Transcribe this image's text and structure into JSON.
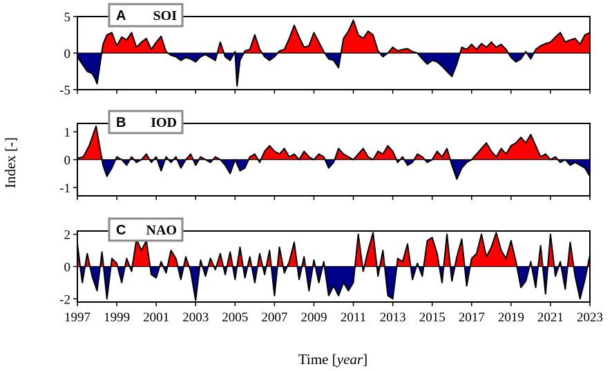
{
  "chart_data": {
    "type": "area",
    "ylabel": "Index [-]",
    "xlabel_plain": "Time [",
    "xlabel_italic": "year",
    "xlabel_close": "]",
    "xlim": [
      1997,
      2023
    ],
    "x_ticks": [
      "1997",
      "1999",
      "2001",
      "2003",
      "2005",
      "2007",
      "2009",
      "2011",
      "2013",
      "2015",
      "2017",
      "2019",
      "2021",
      "2023"
    ],
    "positive_color": "#ff0000",
    "negative_color": "#00008b",
    "line_color": "#000000",
    "panels": [
      {
        "letter": "A",
        "title": "SOI",
        "ylim": [
          -5,
          5
        ],
        "y_ticks": [
          "5",
          "0",
          "-5"
        ],
        "y_tick_values": [
          5,
          0,
          -5
        ],
        "x": [
          1997.0,
          1997.25,
          1997.5,
          1997.75,
          1997.9,
          1998.0,
          1998.15,
          1998.3,
          1998.5,
          1998.75,
          1999.0,
          1999.25,
          1999.5,
          1999.75,
          2000.0,
          2000.25,
          2000.5,
          2000.75,
          2001.0,
          2001.25,
          2001.5,
          2001.75,
          2002.0,
          2002.25,
          2002.5,
          2002.75,
          2003.0,
          2003.25,
          2003.5,
          2003.75,
          2004.0,
          2004.25,
          2004.5,
          2004.75,
          2005.0,
          2005.1,
          2005.25,
          2005.5,
          2005.75,
          2006.0,
          2006.25,
          2006.5,
          2006.75,
          2007.0,
          2007.25,
          2007.5,
          2007.75,
          2008.0,
          2008.25,
          2008.5,
          2008.75,
          2009.0,
          2009.25,
          2009.5,
          2009.75,
          2010.0,
          2010.25,
          2010.5,
          2010.75,
          2011.0,
          2011.25,
          2011.5,
          2011.75,
          2012.0,
          2012.25,
          2012.5,
          2012.75,
          2013.0,
          2013.25,
          2013.5,
          2013.75,
          2014.0,
          2014.25,
          2014.5,
          2014.75,
          2015.0,
          2015.25,
          2015.5,
          2015.75,
          2016.0,
          2016.25,
          2016.5,
          2016.75,
          2017.0,
          2017.25,
          2017.5,
          2017.75,
          2018.0,
          2018.25,
          2018.5,
          2018.75,
          2019.0,
          2019.25,
          2019.5,
          2019.75,
          2020.0,
          2020.25,
          2020.5,
          2020.75,
          2021.0,
          2021.25,
          2021.5,
          2021.75,
          2022.0,
          2022.25,
          2022.5,
          2022.75,
          2023.0
        ],
        "y": [
          -0.5,
          -1.5,
          -2.5,
          -2.8,
          -3.5,
          -4.2,
          -1.5,
          1.2,
          2.5,
          2.8,
          1.0,
          2.2,
          1.8,
          2.8,
          0.8,
          1.5,
          2.0,
          0.5,
          1.5,
          2.3,
          0.2,
          -0.3,
          -0.5,
          -1.0,
          -0.6,
          -0.8,
          -1.2,
          -0.5,
          -0.2,
          -0.6,
          -1.0,
          1.5,
          -0.5,
          -1.0,
          0.2,
          -4.5,
          -1.0,
          0.3,
          0.5,
          2.5,
          0.5,
          -0.5,
          -1.0,
          -0.5,
          0.3,
          0.5,
          2.0,
          3.8,
          2.2,
          0.8,
          1.0,
          2.8,
          1.5,
          0.2,
          -0.8,
          -1.0,
          -2.0,
          2.0,
          3.0,
          4.5,
          2.5,
          2.0,
          3.0,
          2.5,
          0.3,
          -0.5,
          0.0,
          0.8,
          0.3,
          0.5,
          0.6,
          0.2,
          0.0,
          -0.8,
          -1.5,
          -1.0,
          -1.2,
          -1.8,
          -2.5,
          -3.2,
          -1.5,
          0.8,
          0.5,
          1.2,
          0.5,
          1.3,
          0.8,
          1.5,
          0.8,
          1.2,
          0.5,
          -0.6,
          -1.2,
          -0.8,
          0.2,
          -0.8,
          0.5,
          1.0,
          1.3,
          1.5,
          2.2,
          2.8,
          1.5,
          1.8,
          2.0,
          1.2,
          2.5,
          2.8
        ]
      },
      {
        "letter": "B",
        "title": "IOD",
        "ylim": [
          -1.3,
          1.3
        ],
        "y_ticks": [
          "1",
          "0",
          "-1"
        ],
        "y_tick_values": [
          1,
          0,
          -1
        ],
        "x": [
          1997.0,
          1997.3,
          1997.6,
          1997.8,
          1997.95,
          1998.1,
          1998.3,
          1998.5,
          1998.75,
          1999.0,
          1999.25,
          1999.5,
          1999.75,
          2000.0,
          2000.25,
          2000.5,
          2000.75,
          2001.0,
          2001.25,
          2001.5,
          2001.75,
          2002.0,
          2002.25,
          2002.5,
          2002.75,
          2003.0,
          2003.25,
          2003.5,
          2003.75,
          2004.0,
          2004.25,
          2004.5,
          2004.75,
          2005.0,
          2005.25,
          2005.5,
          2005.75,
          2006.0,
          2006.25,
          2006.5,
          2006.75,
          2007.0,
          2007.25,
          2007.5,
          2007.75,
          2008.0,
          2008.25,
          2008.5,
          2008.75,
          2009.0,
          2009.25,
          2009.5,
          2009.75,
          2010.0,
          2010.25,
          2010.5,
          2010.75,
          2011.0,
          2011.25,
          2011.5,
          2011.75,
          2012.0,
          2012.25,
          2012.5,
          2012.75,
          2013.0,
          2013.25,
          2013.5,
          2013.75,
          2014.0,
          2014.25,
          2014.5,
          2014.75,
          2015.0,
          2015.25,
          2015.5,
          2015.75,
          2016.0,
          2016.25,
          2016.5,
          2016.75,
          2017.0,
          2017.25,
          2017.5,
          2017.75,
          2018.0,
          2018.25,
          2018.5,
          2018.75,
          2019.0,
          2019.25,
          2019.5,
          2019.75,
          2020.0,
          2020.25,
          2020.5,
          2020.75,
          2021.0,
          2021.25,
          2021.5,
          2021.75,
          2022.0,
          2022.25,
          2022.5,
          2022.75,
          2023.0
        ],
        "y": [
          0.05,
          0.1,
          0.5,
          0.9,
          1.2,
          0.6,
          -0.2,
          -0.6,
          -0.3,
          0.1,
          0.0,
          -0.2,
          0.1,
          -0.1,
          0.0,
          0.2,
          -0.1,
          0.1,
          -0.4,
          0.1,
          -0.1,
          0.1,
          -0.3,
          0.0,
          0.2,
          -0.2,
          0.1,
          0.0,
          -0.1,
          0.1,
          0.0,
          -0.2,
          -0.5,
          0.0,
          -0.4,
          -0.3,
          0.1,
          0.2,
          -0.1,
          0.3,
          0.5,
          0.3,
          0.2,
          0.4,
          0.1,
          0.2,
          0.0,
          0.3,
          0.1,
          0.0,
          0.2,
          0.1,
          -0.3,
          -0.1,
          0.4,
          0.2,
          0.1,
          0.0,
          0.2,
          0.4,
          0.1,
          0.0,
          0.3,
          0.2,
          0.5,
          0.3,
          -0.1,
          0.1,
          -0.2,
          -0.1,
          0.2,
          0.1,
          -0.1,
          0.0,
          0.3,
          0.1,
          0.4,
          -0.2,
          -0.7,
          -0.3,
          -0.1,
          0.0,
          0.2,
          0.4,
          0.6,
          0.3,
          0.1,
          0.4,
          0.2,
          0.5,
          0.6,
          0.8,
          0.6,
          0.9,
          0.5,
          0.1,
          0.2,
          0.0,
          0.1,
          -0.1,
          0.0,
          -0.2,
          -0.1,
          -0.2,
          -0.3,
          -0.6
        ]
      },
      {
        "letter": "C",
        "title": "NAO",
        "ylim": [
          -2.2,
          2.2
        ],
        "y_ticks": [
          "2",
          "0",
          "-2"
        ],
        "y_tick_values": [
          2,
          0,
          -2
        ],
        "x": [
          1997.0,
          1997.25,
          1997.5,
          1997.75,
          1998.0,
          1998.25,
          1998.5,
          1998.75,
          1999.0,
          1999.25,
          1999.5,
          1999.75,
          2000.0,
          2000.25,
          2000.5,
          2000.75,
          2001.0,
          2001.25,
          2001.5,
          2001.75,
          2002.0,
          2002.25,
          2002.5,
          2002.75,
          2003.0,
          2003.25,
          2003.5,
          2003.75,
          2004.0,
          2004.25,
          2004.5,
          2004.75,
          2005.0,
          2005.25,
          2005.5,
          2005.75,
          2006.0,
          2006.25,
          2006.5,
          2006.75,
          2007.0,
          2007.25,
          2007.5,
          2007.75,
          2008.0,
          2008.25,
          2008.5,
          2008.75,
          2009.0,
          2009.25,
          2009.5,
          2009.75,
          2010.0,
          2010.25,
          2010.5,
          2010.75,
          2011.0,
          2011.25,
          2011.5,
          2011.75,
          2012.0,
          2012.25,
          2012.5,
          2012.75,
          2013.0,
          2013.25,
          2013.5,
          2013.75,
          2014.0,
          2014.25,
          2014.5,
          2014.75,
          2015.0,
          2015.25,
          2015.5,
          2015.75,
          2016.0,
          2016.25,
          2016.5,
          2016.75,
          2017.0,
          2017.25,
          2017.5,
          2017.75,
          2018.0,
          2018.25,
          2018.5,
          2018.75,
          2019.0,
          2019.25,
          2019.5,
          2019.75,
          2020.0,
          2020.25,
          2020.5,
          2020.75,
          2021.0,
          2021.25,
          2021.5,
          2021.75,
          2022.0,
          2022.25,
          2022.5,
          2022.75,
          2023.0
        ],
        "y": [
          1.4,
          -1.0,
          0.8,
          -0.6,
          -1.5,
          0.9,
          -2.0,
          0.5,
          0.2,
          -1.0,
          0.5,
          -0.3,
          1.7,
          1.0,
          1.6,
          -0.5,
          -0.7,
          0.3,
          -0.4,
          1.0,
          0.5,
          -0.8,
          0.6,
          -0.3,
          -2.1,
          0.4,
          -0.6,
          0.5,
          -0.2,
          0.8,
          -0.5,
          0.9,
          -0.8,
          1.2,
          -0.7,
          0.6,
          -1.0,
          0.8,
          -0.5,
          1.0,
          -1.8,
          1.2,
          -0.4,
          0.3,
          1.5,
          -0.8,
          0.6,
          -1.5,
          0.4,
          -1.0,
          0.3,
          -1.8,
          -1.2,
          -1.8,
          -1.0,
          -1.5,
          -1.0,
          2.0,
          -0.3,
          1.0,
          2.1,
          -0.6,
          1.0,
          -1.8,
          -2.0,
          0.5,
          0.3,
          1.4,
          -0.8,
          0.2,
          -0.6,
          1.6,
          1.8,
          0.8,
          -1.0,
          2.0,
          -0.9,
          0.6,
          1.7,
          -1.2,
          0.5,
          0.8,
          2.0,
          0.6,
          1.2,
          2.1,
          1.0,
          0.5,
          1.6,
          0.3,
          -1.3,
          -0.9,
          0.3,
          -1.3,
          1.3,
          -1.7,
          2.0,
          -0.6,
          0.3,
          -1.4,
          1.5,
          -0.6,
          -2.0,
          -0.8,
          0.7
        ]
      }
    ]
  }
}
